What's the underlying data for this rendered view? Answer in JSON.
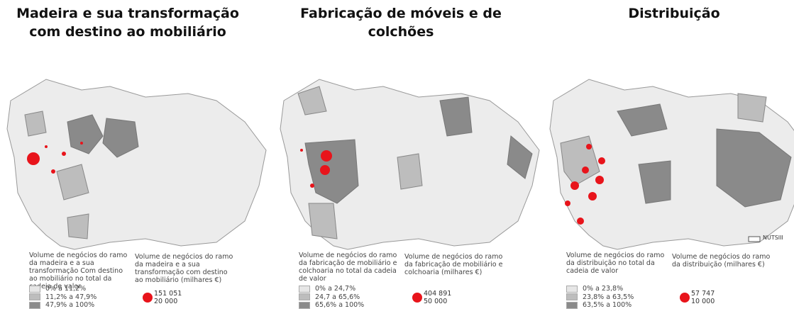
{
  "panels": [
    {
      "title": "Madeira e sua transformação com destino ao mobiliário",
      "choropleth_legend": {
        "title": "Volume de negócios do ramo da madeira e a sua transformação Com destino ao mobiliário no total da cadeia de valor",
        "classes": [
          "0% a 11,2%",
          "11,2% a 47,9%",
          "47,9% a 100%"
        ]
      },
      "bubble_legend": {
        "title": "Volume de negócios do ramo da madeira e a sua transformação com destino ao mobiliário (milhares €)",
        "values": [
          "151 051",
          "20 000"
        ]
      }
    },
    {
      "title": "Fabricação de móveis e de colchões",
      "choropleth_legend": {
        "title": "Volume de negócios do ramo da fabricação de mobiliário e colchoaria no total da cadeia de valor",
        "classes": [
          "0% a 24,7%",
          "24,7 a 65,6%",
          "65,6% a 100%"
        ]
      },
      "bubble_legend": {
        "title": "Volume de negócios do ramo da fabricação de mobiliário e colchoaria (milhares €)",
        "values": [
          "404 891",
          "50 000"
        ]
      }
    },
    {
      "title": "Distribuição",
      "choropleth_legend": {
        "title": "Volume de negócios do ramo da distribuição no total da cadeia de valor",
        "classes": [
          "0% a 23,8%",
          "23,8% a 63,5%",
          "63,5% a 100%"
        ]
      },
      "bubble_legend": {
        "title": "Volume de negócios do ramo da distribuição (milhares €)",
        "values": [
          "57 747",
          "10 000"
        ]
      }
    }
  ],
  "nutsiii_label": "NUTSIII"
}
